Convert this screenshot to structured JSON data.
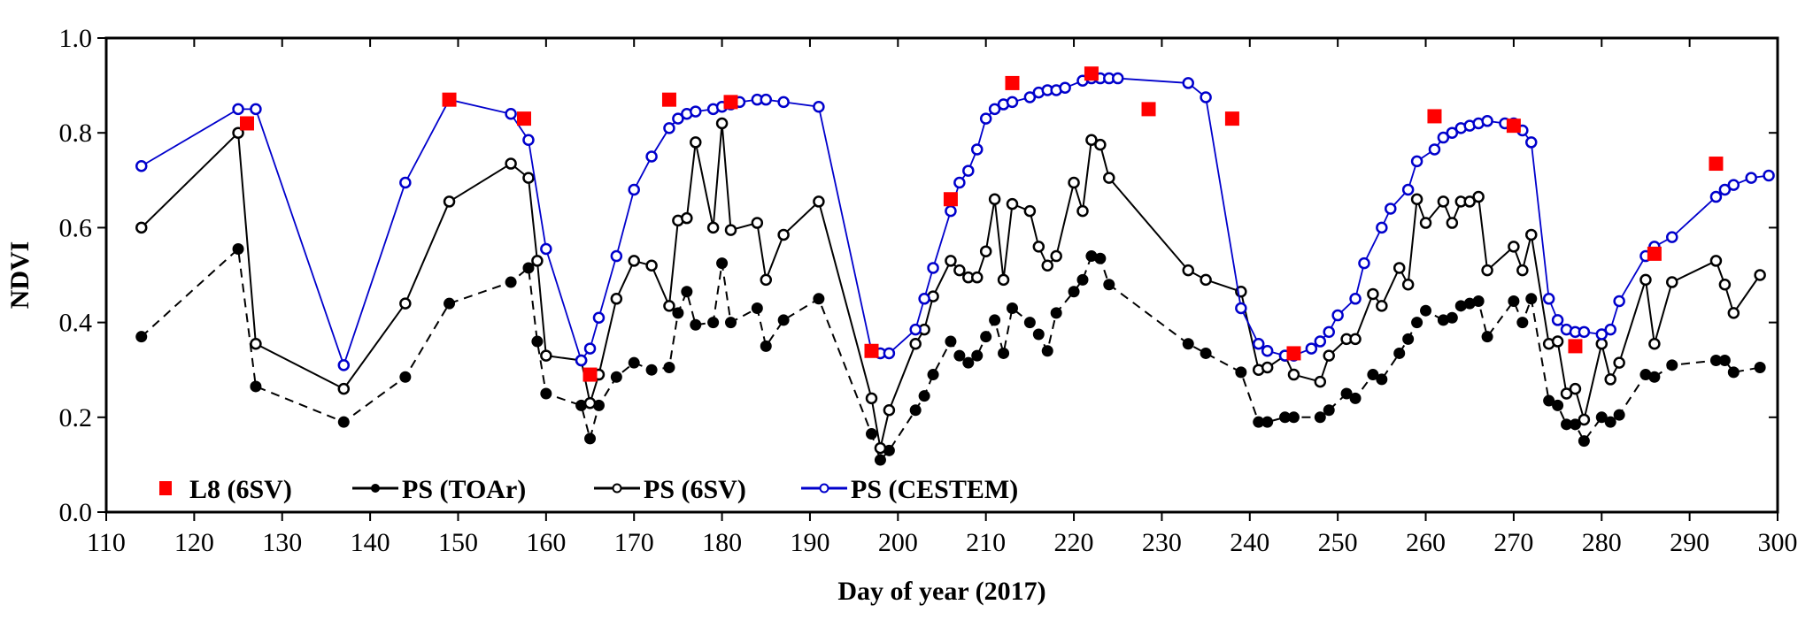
{
  "chart_data": {
    "type": "line",
    "title": "",
    "xlabel": "Day of year (2017)",
    "ylabel": "NDVI",
    "xlim": [
      110,
      300
    ],
    "ylim": [
      0.0,
      1.0
    ],
    "xticks": [
      "110",
      "120",
      "130",
      "140",
      "150",
      "160",
      "170",
      "180",
      "190",
      "200",
      "210",
      "220",
      "230",
      "240",
      "250",
      "260",
      "270",
      "280",
      "290",
      "300"
    ],
    "yticks": [
      "0.0",
      "0.2",
      "0.4",
      "0.6",
      "0.8",
      "1.0"
    ],
    "grid": false,
    "legend_position": "bottom-left",
    "colors": {
      "l8": "#ff0000",
      "toar": "#000000",
      "sixsv": "#000000",
      "cestem": "#0000cc"
    },
    "series": [
      {
        "name": "L8 (6SV)",
        "key": "l8",
        "style": "square-markers",
        "x": [
          126,
          149,
          157.5,
          165,
          174,
          181,
          197,
          206,
          213,
          222,
          228.5,
          238,
          245,
          261,
          270,
          277,
          286,
          293
        ],
        "y": [
          0.82,
          0.87,
          0.83,
          0.29,
          0.87,
          0.865,
          0.34,
          0.66,
          0.905,
          0.925,
          0.85,
          0.83,
          0.335,
          0.835,
          0.815,
          0.35,
          0.545,
          0.735
        ]
      },
      {
        "name": "PS (TOAr)",
        "key": "toar",
        "style": "dashed-line-filled-circles",
        "x": [
          114,
          125,
          127,
          137,
          144,
          149,
          156,
          158,
          159,
          160,
          164,
          165,
          166,
          168,
          170,
          172,
          174,
          175,
          176,
          177,
          179,
          180,
          181,
          184,
          185,
          187,
          191,
          197,
          198,
          199,
          202,
          203,
          204,
          206,
          207,
          208,
          209,
          210,
          211,
          212,
          213,
          215,
          216,
          217,
          218,
          220,
          221,
          222,
          223,
          224,
          233,
          235,
          239,
          241,
          242,
          244,
          245,
          248,
          249,
          251,
          252,
          254,
          255,
          257,
          258,
          259,
          260,
          262,
          263,
          264,
          265,
          266,
          267,
          270,
          271,
          272,
          274,
          275,
          276,
          277,
          278,
          280,
          281,
          282,
          285,
          286,
          288,
          293,
          294,
          295,
          298
        ],
        "y": [
          0.37,
          0.555,
          0.265,
          0.19,
          0.285,
          0.44,
          0.485,
          0.515,
          0.36,
          0.25,
          0.225,
          0.155,
          0.225,
          0.285,
          0.315,
          0.3,
          0.305,
          0.42,
          0.465,
          0.395,
          0.4,
          0.525,
          0.4,
          0.43,
          0.35,
          0.405,
          0.45,
          0.165,
          0.11,
          0.13,
          0.215,
          0.245,
          0.29,
          0.36,
          0.33,
          0.315,
          0.33,
          0.37,
          0.405,
          0.335,
          0.43,
          0.4,
          0.375,
          0.34,
          0.42,
          0.465,
          0.49,
          0.54,
          0.535,
          0.48,
          0.355,
          0.335,
          0.295,
          0.19,
          0.19,
          0.2,
          0.2,
          0.2,
          0.215,
          0.25,
          0.24,
          0.29,
          0.28,
          0.335,
          0.365,
          0.4,
          0.425,
          0.405,
          0.41,
          0.435,
          0.44,
          0.445,
          0.37,
          0.445,
          0.4,
          0.45,
          0.235,
          0.225,
          0.185,
          0.185,
          0.15,
          0.2,
          0.19,
          0.205,
          0.29,
          0.285,
          0.31,
          0.32,
          0.32,
          0.295,
          0.305
        ]
      },
      {
        "name": "PS (6SV)",
        "key": "sixsv",
        "style": "solid-line-open-circles",
        "x": [
          114,
          125,
          127,
          137,
          144,
          149,
          156,
          158,
          159,
          160,
          164,
          165,
          166,
          168,
          170,
          172,
          174,
          175,
          176,
          177,
          179,
          180,
          181,
          184,
          185,
          187,
          191,
          197,
          198,
          199,
          202,
          203,
          204,
          206,
          207,
          208,
          209,
          210,
          211,
          212,
          213,
          215,
          216,
          217,
          218,
          220,
          221,
          222,
          223,
          224,
          233,
          235,
          239,
          241,
          242,
          244,
          245,
          248,
          249,
          251,
          252,
          254,
          255,
          257,
          258,
          259,
          260,
          262,
          263,
          264,
          265,
          266,
          267,
          270,
          271,
          272,
          274,
          275,
          276,
          277,
          278,
          280,
          281,
          282,
          285,
          286,
          288,
          293,
          294,
          295,
          298
        ],
        "y": [
          0.6,
          0.8,
          0.355,
          0.26,
          0.44,
          0.655,
          0.735,
          0.705,
          0.53,
          0.33,
          0.32,
          0.23,
          0.29,
          0.45,
          0.53,
          0.52,
          0.435,
          0.615,
          0.62,
          0.78,
          0.6,
          0.82,
          0.595,
          0.61,
          0.49,
          0.585,
          0.655,
          0.24,
          0.135,
          0.215,
          0.355,
          0.385,
          0.455,
          0.53,
          0.51,
          0.495,
          0.495,
          0.55,
          0.66,
          0.49,
          0.65,
          0.635,
          0.56,
          0.52,
          0.54,
          0.695,
          0.635,
          0.785,
          0.775,
          0.705,
          0.51,
          0.49,
          0.465,
          0.3,
          0.305,
          0.33,
          0.29,
          0.275,
          0.33,
          0.365,
          0.365,
          0.46,
          0.435,
          0.515,
          0.48,
          0.66,
          0.61,
          0.655,
          0.61,
          0.655,
          0.655,
          0.665,
          0.51,
          0.56,
          0.51,
          0.585,
          0.355,
          0.36,
          0.25,
          0.26,
          0.195,
          0.355,
          0.28,
          0.315,
          0.49,
          0.355,
          0.485,
          0.53,
          0.48,
          0.42,
          0.5
        ]
      },
      {
        "name": "PS (CESTEM)",
        "key": "cestem",
        "style": "solid-line-open-circles",
        "x": [
          114,
          125,
          127,
          137,
          144,
          149,
          156,
          158,
          160,
          164,
          165,
          166,
          168,
          170,
          172,
          174,
          175,
          176,
          177,
          179,
          180,
          181,
          182,
          184,
          185,
          187,
          191,
          197,
          198,
          199,
          202,
          203,
          204,
          206,
          207,
          208,
          209,
          210,
          211,
          212,
          213,
          215,
          216,
          217,
          218,
          219,
          221,
          222,
          223,
          224,
          225,
          233,
          235,
          239,
          241,
          242,
          244,
          245,
          247,
          248,
          249,
          250,
          252,
          253,
          255,
          256,
          258,
          259,
          261,
          262,
          263,
          264,
          265,
          266,
          267,
          269,
          270,
          271,
          272,
          274,
          275,
          276,
          277,
          278,
          280,
          281,
          282,
          285,
          286,
          288,
          293,
          294,
          295,
          297,
          299
        ],
        "y": [
          0.73,
          0.85,
          0.85,
          0.31,
          0.695,
          0.87,
          0.84,
          0.785,
          0.555,
          0.32,
          0.345,
          0.41,
          0.54,
          0.68,
          0.75,
          0.81,
          0.83,
          0.84,
          0.845,
          0.85,
          0.855,
          0.86,
          0.865,
          0.87,
          0.87,
          0.865,
          0.855,
          0.34,
          0.335,
          0.335,
          0.385,
          0.45,
          0.515,
          0.635,
          0.695,
          0.72,
          0.765,
          0.83,
          0.85,
          0.86,
          0.865,
          0.875,
          0.885,
          0.89,
          0.89,
          0.895,
          0.91,
          0.915,
          0.915,
          0.915,
          0.915,
          0.905,
          0.875,
          0.43,
          0.355,
          0.34,
          0.33,
          0.33,
          0.345,
          0.36,
          0.38,
          0.415,
          0.45,
          0.525,
          0.6,
          0.64,
          0.68,
          0.74,
          0.765,
          0.79,
          0.8,
          0.81,
          0.815,
          0.82,
          0.825,
          0.82,
          0.82,
          0.805,
          0.78,
          0.45,
          0.405,
          0.385,
          0.38,
          0.38,
          0.375,
          0.385,
          0.445,
          0.54,
          0.56,
          0.58,
          0.665,
          0.68,
          0.69,
          0.705,
          0.71
        ]
      }
    ]
  }
}
